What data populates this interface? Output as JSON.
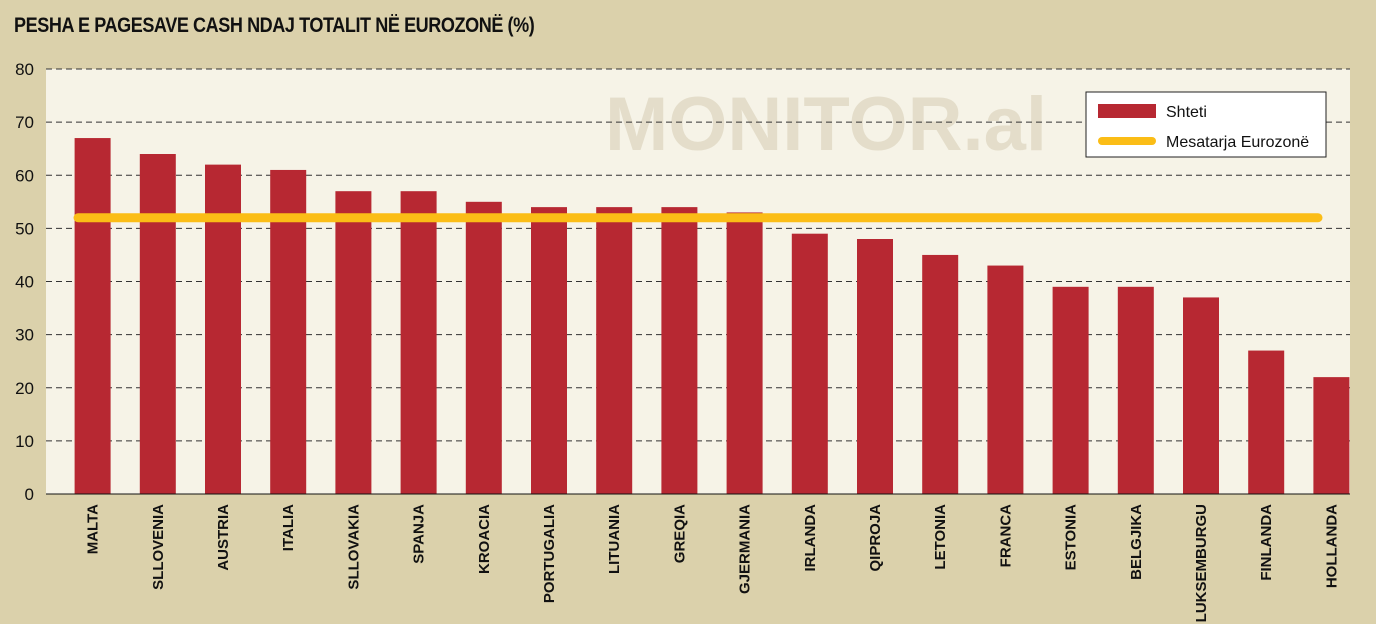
{
  "title": "PESHA E PAGESAVE CASH NDAJ TOTALIT NË EUROZONË (%)",
  "watermark": "MONITOR.al",
  "colors": {
    "background": "#dbd1ab",
    "plot_background": "#f6f3e7",
    "bar": "#b72832",
    "average_line": "#fbbd16"
  },
  "chart_data": {
    "type": "bar",
    "categories": [
      "MALTA",
      "SLLOVENIA",
      "AUSTRIA",
      "ITALIA",
      "SLLOVAKIA",
      "SPANJA",
      "KROACIA",
      "PORTUGALIA",
      "LITUANIA",
      "GREQIA",
      "GJERMANIA",
      "IRLANDA",
      "QIPROJA",
      "LETONIA",
      "FRANCA",
      "ESTONIA",
      "BELGJIKA",
      "LUKSEMBURGU",
      "FINLANDA",
      "HOLLANDA"
    ],
    "series": [
      {
        "name": "Shteti",
        "values": [
          67,
          64,
          62,
          61,
          57,
          57,
          55,
          54,
          54,
          54,
          53,
          49,
          48,
          45,
          43,
          39,
          39,
          37,
          27,
          22
        ]
      }
    ],
    "average": {
      "name": "Mesatarja Eurozonë",
      "value": 52
    },
    "ylim": [
      0,
      80
    ],
    "yticks": [
      0,
      10,
      20,
      30,
      40,
      50,
      60,
      70,
      80
    ],
    "grid": true,
    "legend": "top-right",
    "xlabel": "",
    "ylabel": ""
  }
}
